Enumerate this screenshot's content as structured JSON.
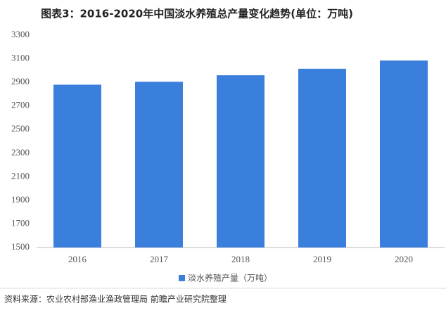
{
  "chart_data": {
    "type": "bar",
    "title": "图表3：2016-2020年中国淡水养殖总产量变化趋势(单位：万吨)",
    "categories": [
      "2016",
      "2017",
      "2018",
      "2019",
      "2020"
    ],
    "series": [
      {
        "name": "淡水养殖产量（万吨）",
        "color": "#3b7fdc",
        "values": [
          2880,
          2905,
          2960,
          3015,
          3085
        ]
      }
    ],
    "ylim": [
      1500,
      3300
    ],
    "yticks": [
      1500,
      1700,
      1900,
      2100,
      2300,
      2500,
      2700,
      2900,
      3100,
      3300
    ],
    "grid": false,
    "source": "资料来源：农业农村部渔业渔政管理局 前瞻产业研究院整理"
  }
}
